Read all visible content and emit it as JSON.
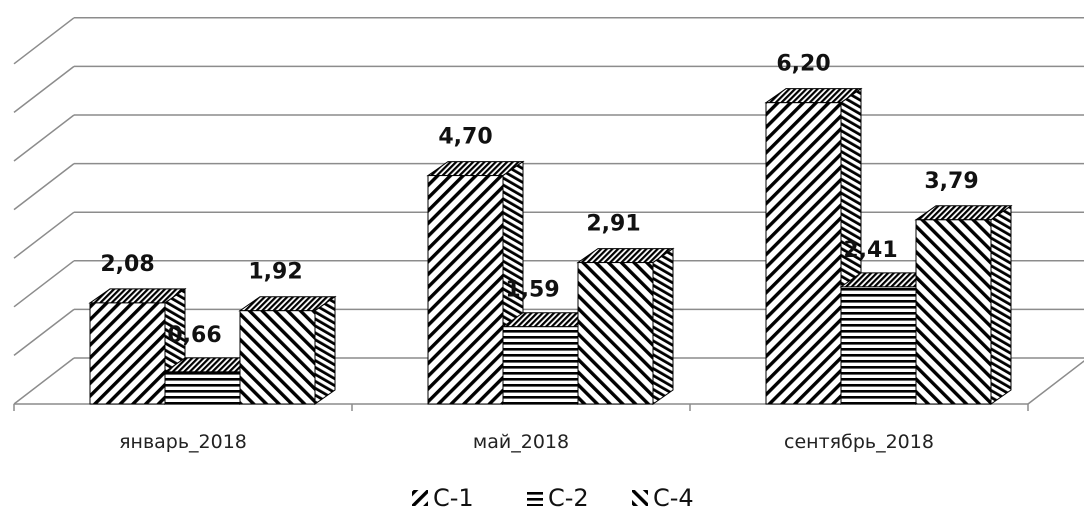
{
  "chart_data": {
    "type": "bar",
    "categories": [
      "январь_2018",
      "май_2018",
      "сентябрь_2018"
    ],
    "series": [
      {
        "name": "С-1",
        "values": [
          2.08,
          4.7,
          6.2
        ],
        "pattern": "back-diagonal"
      },
      {
        "name": "С-2",
        "values": [
          0.66,
          1.59,
          2.41
        ],
        "pattern": "horizontal"
      },
      {
        "name": "С-4",
        "values": [
          1.92,
          2.91,
          3.79
        ],
        "pattern": "forward-diagonal"
      }
    ],
    "value_labels": [
      [
        "2,08",
        "0,66",
        "1,92"
      ],
      [
        "4,70",
        "1,59",
        "2,91"
      ],
      [
        "6,20",
        "2,41",
        "3,79"
      ]
    ],
    "ylim": [
      0,
      7
    ],
    "grid": true,
    "three_d": true,
    "legend_position": "bottom",
    "colors": {
      "stroke": "#000000",
      "grid": "#8c8c8c",
      "background": "#ffffff"
    }
  }
}
